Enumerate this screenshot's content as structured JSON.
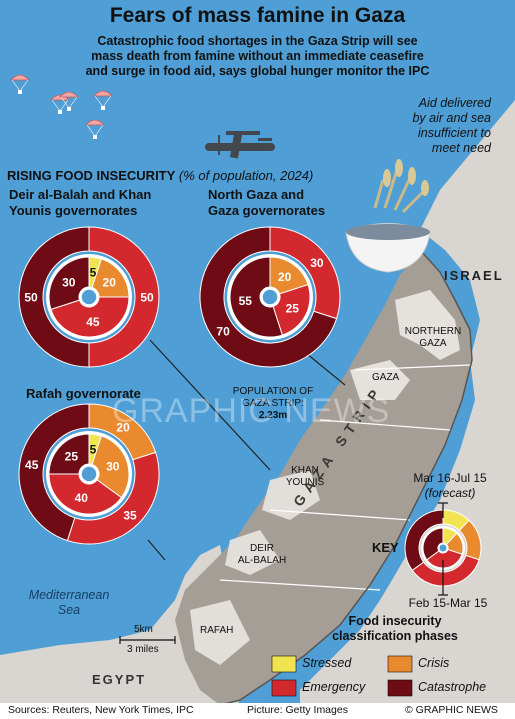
{
  "header": {
    "title": "Fears of mass famine in Gaza",
    "subtitle_lines": [
      "Catastrophic food shortages in the Gaza Strip will see",
      "mass death from famine without an immediate ceasefire",
      "and surge in food aid, says global hunger monitor the IPC"
    ]
  },
  "aid_note_lines": [
    "Aid delivered",
    "by air and sea",
    "insufficient to",
    "meet need"
  ],
  "section": {
    "title": "RISING FOOD INSECURITY",
    "subtitle": "(% of population, 2024)"
  },
  "regions": [
    {
      "name_lines": [
        "Deir al-Balah and Khan",
        "Younis governorates"
      ],
      "outer": {
        "stressed": 0,
        "crisis": 0,
        "emergency": 50,
        "catastrophe": 50
      },
      "inner": {
        "stressed": 5,
        "crisis": 20,
        "emergency": 45,
        "catastrophe": 30
      }
    },
    {
      "name_lines": [
        "North Gaza and",
        "Gaza governorates"
      ],
      "outer": {
        "stressed": 0,
        "crisis": 0,
        "emergency": 30,
        "catastrophe": 70
      },
      "inner": {
        "stressed": 0,
        "crisis": 20,
        "emergency": 25,
        "catastrophe": 55
      }
    },
    {
      "name_lines": [
        "Rafah governorate"
      ],
      "outer": {
        "stressed": 0,
        "crisis": 20,
        "emergency": 35,
        "catastrophe": 45
      },
      "inner": {
        "stressed": 5,
        "crisis": 30,
        "emergency": 40,
        "catastrophe": 25
      }
    }
  ],
  "population": {
    "lines": [
      "POPULATION OF",
      "GAZA STRIP:",
      "2.23m"
    ]
  },
  "map_labels": {
    "israel": "ISRAEL",
    "egypt": "EGYPT",
    "gaza_strip": "GAZA STRIP",
    "northern_gaza_lines": [
      "NORTHERN",
      "GAZA"
    ],
    "gaza": "GAZA",
    "khan_younis_lines": [
      "KHAN",
      "YOUNIS"
    ],
    "deir_al_balah_lines": [
      "DEIR",
      "AL-BALAH"
    ],
    "rafah": "RAFAH",
    "sea_lines": [
      "Mediterranean",
      "Sea"
    ]
  },
  "scale": {
    "km": "5km",
    "miles": "3 miles"
  },
  "key": {
    "title": "KEY",
    "forecast_period": "Mar 16-Jul 15",
    "forecast_label": "(forecast)",
    "current_period": "Feb 15-Mar 15",
    "legend_title_lines": [
      "Food insecurity",
      "classification phases"
    ],
    "phases": [
      {
        "label": "Stressed",
        "color": "#f2e350"
      },
      {
        "label": "Crisis",
        "color": "#ea8a2e"
      },
      {
        "label": "Emergency",
        "color": "#d3282e"
      },
      {
        "label": "Catastrophe",
        "color": "#6e0b14"
      }
    ]
  },
  "watermark": "GRAPHIC NEWS",
  "footer": {
    "sources": "Sources: Reuters, New York Times, IPC",
    "picture": "Picture: Getty Images",
    "credit": "© GRAPHIC NEWS"
  }
}
